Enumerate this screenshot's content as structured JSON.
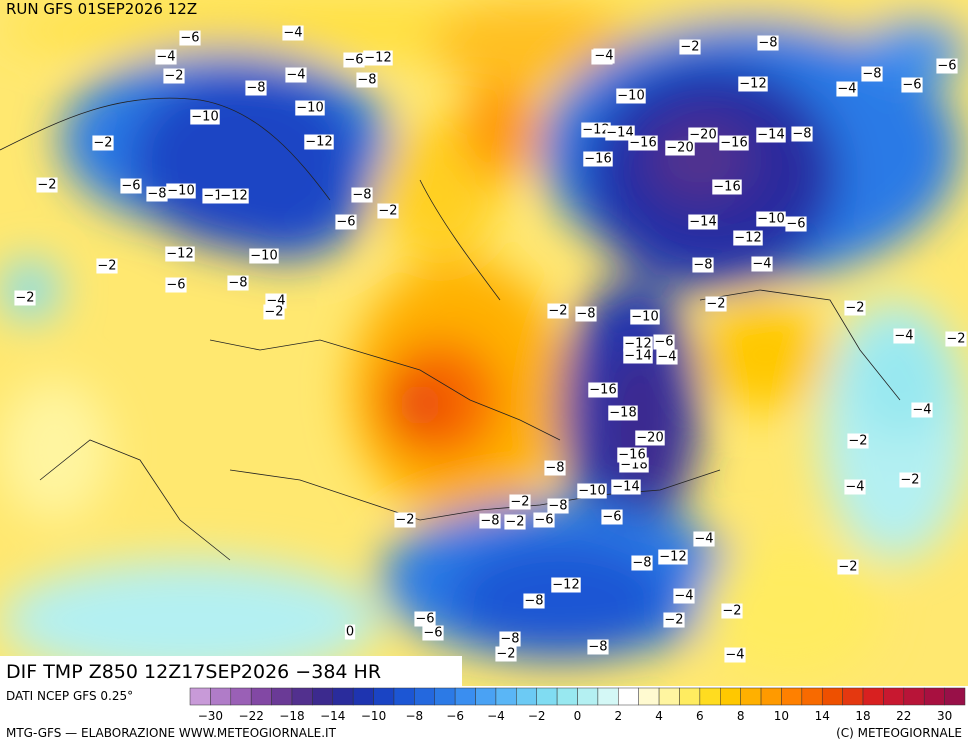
{
  "header": {
    "run": "RUN GFS 01SEP2026 12Z",
    "field": "DIF TMP Z850 12Z17SEP2026 −384 HR"
  },
  "footer": {
    "source": "DATI NCEP GFS 0.25°",
    "credit": "MTG-GFS — ELABORAZIONE WWW.METEOGIORNALE.IT",
    "copyright": "(C) METEOGIORNALE"
  },
  "colorbar": {
    "colors": [
      "#c89ad8",
      "#b07cc8",
      "#9a60b6",
      "#8248a4",
      "#6a3a96",
      "#52308e",
      "#3c2a8e",
      "#2a2c9c",
      "#1e34b0",
      "#1a44c4",
      "#1c56d4",
      "#2468de",
      "#2c7ae6",
      "#3a8ef0",
      "#4aa2f4",
      "#5ab6f6",
      "#6ccaf4",
      "#80dcf2",
      "#98e8f0",
      "#b4f0f2",
      "#d4f8f6",
      "#ffffff",
      "#fffad0",
      "#fff5a0",
      "#ffec60",
      "#ffdc20",
      "#ffc800",
      "#ffb000",
      "#ff9a00",
      "#ff8000",
      "#f86a00",
      "#ee5000",
      "#e43810",
      "#d82020",
      "#c81830",
      "#b81438",
      "#a81040",
      "#981048"
    ],
    "labels": [
      "−30",
      "−22",
      "−18",
      "−14",
      "−10",
      "−8",
      "−6",
      "−4",
      "−2",
      "0",
      "2",
      "4",
      "6",
      "8",
      "10",
      "14",
      "18",
      "22",
      "30"
    ]
  },
  "contours": [
    "−6",
    "−4",
    "−4",
    "−2",
    "−12",
    "−2",
    "−8",
    "−4",
    "−8",
    "−6",
    "−8",
    "−2",
    "−4",
    "−6",
    "−10",
    "−10",
    "−12",
    "−2",
    "−12",
    "−4",
    "−6",
    "−8",
    "−10",
    "−1",
    "−12",
    "−8",
    "−6",
    "−2",
    "−2",
    "−12",
    "−10",
    "−6",
    "−8",
    "−2",
    "−2",
    "−4",
    "−2",
    "−8",
    "−6",
    "−10",
    "−12",
    "−14",
    "−16",
    "−16",
    "−20",
    "−20",
    "−16",
    "−14",
    "−8",
    "−16",
    "−14",
    "−10",
    "−6",
    "−12",
    "−8",
    "−4",
    "−2",
    "−8",
    "−2",
    "−10",
    "−12",
    "−6",
    "−14",
    "−4",
    "−16",
    "−18",
    "−20",
    "−18",
    "−16",
    "−14",
    "−10",
    "−8",
    "−2",
    "−8",
    "−12",
    "−8",
    "−8",
    "−6",
    "−8",
    "−2",
    "−2",
    "−4",
    "−2",
    "−4",
    "−2",
    "−4",
    "−2",
    "−2",
    "−4",
    "−2",
    "−2",
    "−4",
    "−4",
    "−2",
    "−12",
    "−8",
    "0",
    "−6",
    "−6",
    "−8",
    "−6",
    "−2"
  ]
}
